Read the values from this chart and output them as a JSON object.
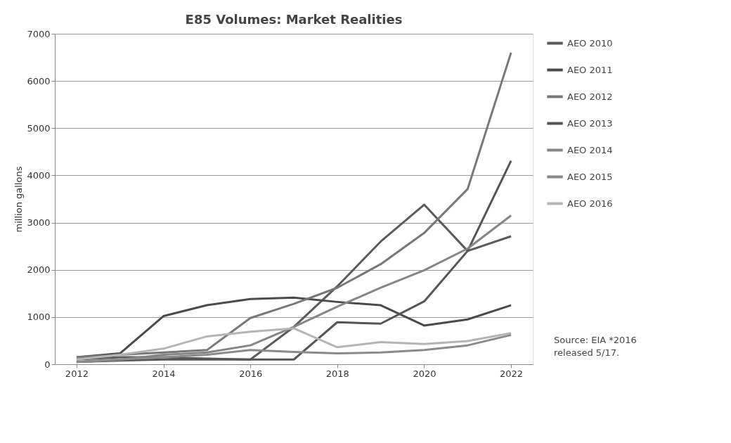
{
  "chart_data": {
    "type": "line",
    "title": "E85 Volumes: Market Realities",
    "ylabel": "million gallons",
    "x": [
      2012,
      2013,
      2014,
      2015,
      2016,
      2017,
      2018,
      2019,
      2020,
      2021,
      2022
    ],
    "xlim": [
      2011.5,
      2022.5
    ],
    "xticks": [
      2012,
      2014,
      2016,
      2018,
      2020,
      2022
    ],
    "ylim": [
      0,
      7000
    ],
    "yticks": [
      0,
      1000,
      2000,
      3000,
      4000,
      5000,
      6000,
      7000
    ],
    "grid": "y",
    "legend": "right",
    "marker": "none",
    "line_style": "solid",
    "annotations": [
      "Source: EIA *2016 released 5/17."
    ],
    "series": [
      {
        "name": "AEO 2010",
        "color": "#5a5a5a",
        "values": [
          100,
          150,
          150,
          120,
          100,
          790,
          1650,
          2600,
          3380,
          2400,
          2710
        ]
      },
      {
        "name": "AEO 2011",
        "color": "#4a4a4a",
        "values": [
          150,
          230,
          1020,
          1250,
          1380,
          1410,
          1320,
          1250,
          820,
          950,
          1250
        ]
      },
      {
        "name": "AEO 2012",
        "color": "#777777",
        "values": [
          150,
          200,
          250,
          300,
          980,
          1280,
          1620,
          2120,
          2780,
          3710,
          6600
        ]
      },
      {
        "name": "AEO 2013",
        "color": "#555555",
        "values": [
          50,
          80,
          100,
          100,
          100,
          100,
          890,
          860,
          1330,
          2400,
          4310
        ]
      },
      {
        "name": "AEO 2014",
        "color": "#858585",
        "values": [
          50,
          100,
          200,
          250,
          400,
          790,
          1220,
          1620,
          1990,
          2450,
          3150
        ]
      },
      {
        "name": "AEO 2015",
        "color": "#8a8a8a",
        "values": [
          50,
          100,
          150,
          200,
          300,
          260,
          230,
          250,
          300,
          400,
          620
        ]
      },
      {
        "name": "AEO 2016",
        "color": "#b4b4b4",
        "values": [
          100,
          200,
          330,
          590,
          690,
          760,
          360,
          470,
          430,
          490,
          660
        ]
      }
    ]
  }
}
